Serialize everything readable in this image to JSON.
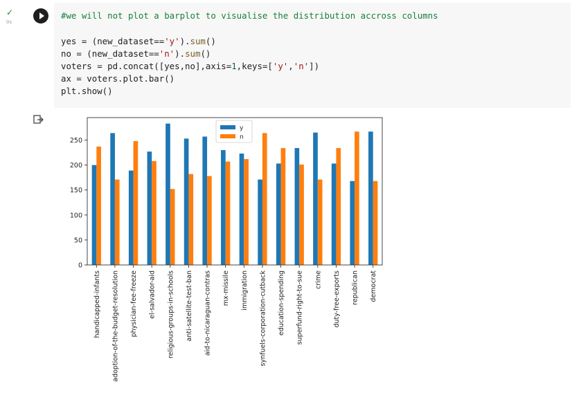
{
  "cell": {
    "exec_time": "0s",
    "code": {
      "comment": "#we will not plot a barplot to visualise the distribution accross columns",
      "line1": {
        "a": "yes = (new_dataset==",
        "s": "'y'",
        "b": ").",
        "f": "sum",
        "c": "()"
      },
      "line2": {
        "a": "no = (new_dataset==",
        "s": "'n'",
        "b": ").",
        "f": "sum",
        "c": "()"
      },
      "line3": {
        "a": "voters = pd.concat([yes,no],axis=",
        "n": "1",
        "b": ",keys=[",
        "s1": "'y'",
        "comma": ",",
        "s2": "'n'",
        "c": "])"
      },
      "line4": "ax = voters.plot.bar()",
      "line5": "plt.show()"
    }
  },
  "icons": {
    "run": "run-cell-icon",
    "status": "check-icon",
    "output": "output-redirect-icon"
  },
  "colors": {
    "y": "#1f77b4",
    "n": "#ff7f0e"
  },
  "chart_data": {
    "type": "bar",
    "categories": [
      "handicapped-infants",
      "adoption-of-the-budget-resolution",
      "physician-fee-freeze",
      "el-salvador-aid",
      "religious-groups-in-schools",
      "anti-satellite-test-ban",
      "aid-to-nicaraguan-contras",
      "mx-missile",
      "immigration",
      "synfuels-corporation-cutback",
      "education-spending",
      "superfund-right-to-sue",
      "crime",
      "duty-free-exports",
      "republican",
      "democrat"
    ],
    "series": [
      {
        "name": "y",
        "values": [
          200,
          264,
          189,
          227,
          283,
          253,
          257,
          230,
          223,
          171,
          203,
          234,
          265,
          203,
          168,
          267
        ]
      },
      {
        "name": "n",
        "values": [
          237,
          171,
          248,
          208,
          152,
          182,
          178,
          207,
          212,
          264,
          234,
          201,
          171,
          234,
          267,
          168
        ]
      }
    ],
    "ylim": [
      0,
      295
    ],
    "yticks": [
      0,
      50,
      100,
      150,
      200,
      250
    ],
    "legend": "top-center",
    "grid": false
  }
}
